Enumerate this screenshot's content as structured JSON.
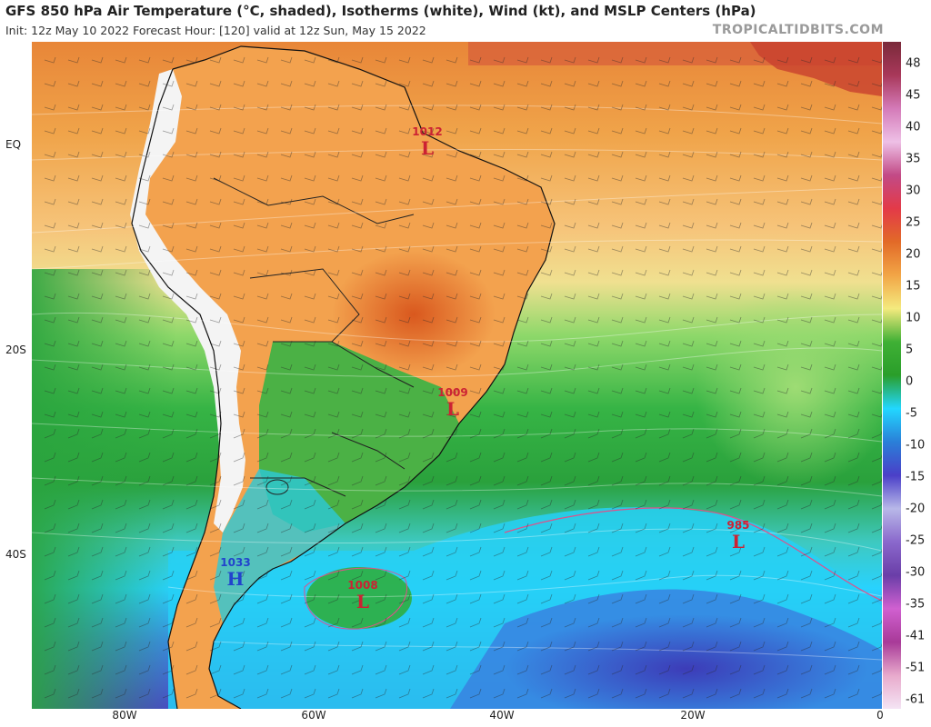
{
  "header": {
    "title": "GFS 850 hPa Air Temperature (°C, shaded), Isotherms (white), Wind (kt), and MSLP Centers (hPa)",
    "subtitle": "Init: 12z May 10 2022   Forecast Hour: [120]   valid at 12z Sun, May 15 2022",
    "brand": "TROPICALTIDBITS.COM"
  },
  "axes": {
    "lat_labels": [
      "EQ",
      "20S",
      "40S"
    ],
    "lon_labels": [
      "80W",
      "60W",
      "40W",
      "20W",
      "0"
    ]
  },
  "colorbar": {
    "labels": [
      "48",
      "45",
      "40",
      "35",
      "30",
      "25",
      "20",
      "15",
      "10",
      "5",
      "0",
      "-5",
      "-10",
      "-15",
      "-20",
      "-25",
      "-30",
      "-35",
      "-41",
      "-51",
      "-61"
    ],
    "colors": [
      "#7a2a3a",
      "#a8385a",
      "#d47ab8",
      "#eec0e6",
      "#c24a86",
      "#e33a48",
      "#e26a28",
      "#f2a546",
      "#f4ea7e",
      "#3fb035",
      "#2a9e2a",
      "#22d7ff",
      "#2a7fd8",
      "#4a3fc8",
      "#b8b8e8",
      "#8a68cc",
      "#6a3ea8",
      "#d060d0",
      "#a83a98",
      "#e8aacc",
      "#f4e4f4"
    ]
  },
  "pressure_centers": [
    {
      "value": "1012",
      "letter": "L",
      "color": "#cc2233"
    },
    {
      "value": "1009",
      "letter": "L",
      "color": "#cc2233"
    },
    {
      "value": "985",
      "letter": "L",
      "color": "#cc2233"
    },
    {
      "value": "1008",
      "letter": "L",
      "color": "#cc2233"
    },
    {
      "value": "1033",
      "letter": "H",
      "color": "#2244cc"
    }
  ]
}
